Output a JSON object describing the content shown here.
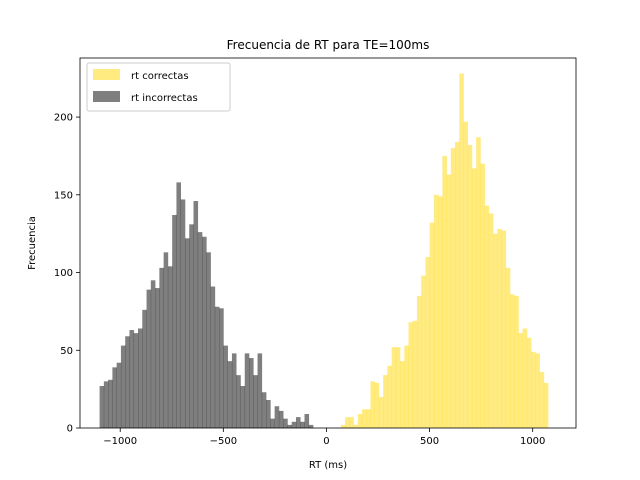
{
  "chart_data": {
    "type": "bar",
    "title": "Frecuencia de RT para TE=100ms",
    "xlabel": "RT (ms)",
    "ylabel": "Frecuencia",
    "xlim": [
      -1195,
      1210
    ],
    "ylim": [
      0,
      238
    ],
    "xticks": [
      -1000,
      -500,
      0,
      500,
      1000
    ],
    "xtick_labels": [
      "−1000",
      "−500",
      "0",
      "500",
      "1000"
    ],
    "yticks": [
      0,
      50,
      100,
      150,
      200
    ],
    "yticks_labels": [
      "0",
      "50",
      "100",
      "150",
      "200"
    ],
    "grid": false,
    "legend_position": "top-left",
    "series": [
      {
        "name": "rt correctas",
        "color": "#ffd700",
        "alpha": 0.5,
        "bin_start": 70,
        "bin_width": 20.5,
        "values": [
          2,
          7,
          7,
          2,
          9,
          12,
          12,
          30,
          29,
          20,
          34,
          40,
          52,
          52,
          43,
          53,
          68,
          69,
          85,
          98,
          110,
          132,
          150,
          149,
          175,
          163,
          180,
          184,
          228,
          197,
          182,
          167,
          187,
          170,
          143,
          138,
          125,
          128,
          127,
          103,
          86,
          85,
          61,
          64,
          58,
          49,
          48,
          36,
          29
        ]
      },
      {
        "name": "rt incorrectas",
        "color": "#000000",
        "alpha": 0.5,
        "bin_start": -1100,
        "bin_width": 20.7,
        "values": [
          27,
          30,
          31,
          39,
          42,
          53,
          59,
          63,
          61,
          64,
          76,
          89,
          95,
          90,
          103,
          113,
          104,
          137,
          158,
          147,
          122,
          131,
          146,
          126,
          123,
          113,
          91,
          78,
          77,
          53,
          43,
          48,
          34,
          27,
          48,
          45,
          34,
          48,
          23,
          18,
          6,
          14,
          11,
          6,
          2,
          4,
          7,
          4,
          9,
          2
        ]
      }
    ]
  }
}
